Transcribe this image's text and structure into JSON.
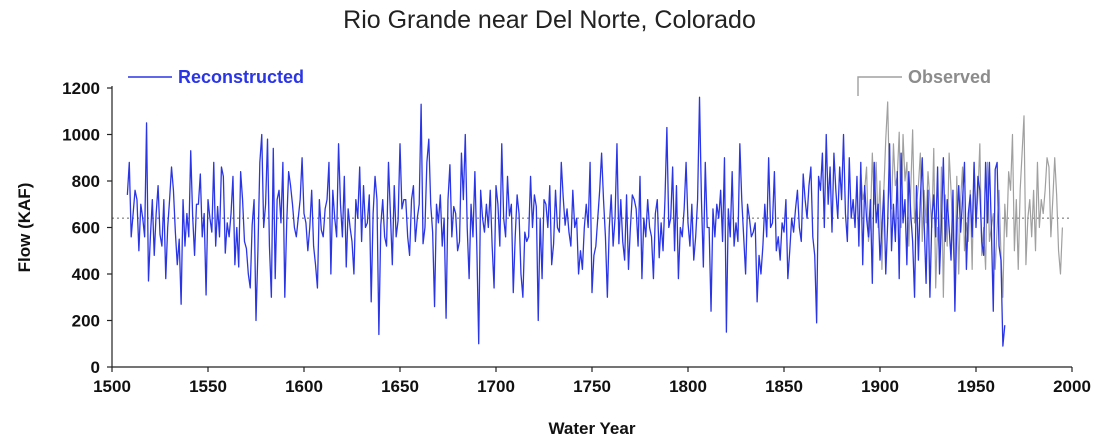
{
  "chart_data": {
    "type": "line",
    "title": "Rio Grande near Del Norte, Colorado",
    "xlabel": "Water Year",
    "ylabel": "Flow (KAF)",
    "xlim": [
      1500,
      2000
    ],
    "ylim": [
      0,
      1200
    ],
    "x_ticks": [
      "1500",
      "1550",
      "1600",
      "1650",
      "1700",
      "1750",
      "1800",
      "1850",
      "1900",
      "1950",
      "2000"
    ],
    "y_ticks": [
      "0",
      "200",
      "400",
      "600",
      "800",
      "1000",
      "1200"
    ],
    "mean_line": 640,
    "legend": {
      "reconstructed": "Reconstructed",
      "observed": "Observed"
    },
    "colors": {
      "reconstructed": "#2a35e6",
      "observed": "#a0a0a0",
      "mean": "#909090",
      "legend_observed_text": "#8c8c8c"
    },
    "series": [
      {
        "name": "Reconstructed",
        "x_start": 1508,
        "x_step": 1,
        "values": [
          740,
          880,
          560,
          660,
          760,
          720,
          500,
          700,
          640,
          560,
          1050,
          370,
          560,
          720,
          480,
          660,
          780,
          570,
          520,
          720,
          380,
          600,
          720,
          860,
          760,
          580,
          440,
          550,
          270,
          720,
          520,
          660,
          560,
          930,
          650,
          480,
          700,
          700,
          830,
          560,
          660,
          310,
          720,
          640,
          580,
          880,
          520,
          690,
          560,
          860,
          820,
          490,
          620,
          560,
          660,
          820,
          440,
          600,
          430,
          840,
          720,
          540,
          510,
          400,
          340,
          610,
          720,
          200,
          500,
          880,
          1000,
          600,
          700,
          980,
          520,
          300,
          940,
          380,
          720,
          760,
          620,
          880,
          300,
          620,
          840,
          780,
          700,
          600,
          560,
          640,
          720,
          900,
          660,
          620,
          500,
          600,
          760,
          520,
          440,
          340,
          720,
          590,
          560,
          680,
          720,
          880,
          400,
          760,
          640,
          560,
          960,
          700,
          560,
          820,
          430,
          680,
          600,
          540,
          400,
          720,
          640,
          860,
          540,
          780,
          600,
          620,
          740,
          280,
          660,
          820,
          720,
          140,
          610,
          720,
          560,
          520,
          880,
          660,
          440,
          780,
          560,
          630,
          960,
          680,
          720,
          720,
          560,
          480,
          720,
          780,
          540,
          640,
          700,
          1130,
          530,
          600,
          880,
          980,
          700,
          580,
          260,
          700,
          620,
          740,
          520,
          640,
          210,
          720,
          870,
          560,
          690,
          660,
          500,
          540,
          920,
          720,
          1000,
          600,
          380,
          700,
          560,
          840,
          520,
          100,
          760,
          640,
          580,
          700,
          600,
          760,
          520,
          340,
          780,
          700,
          520,
          960,
          640,
          560,
          820,
          650,
          700,
          320,
          560,
          740,
          660,
          400,
          300,
          580,
          540,
          560,
          820,
          600,
          740,
          690,
          200,
          640,
          380,
          720,
          700,
          600,
          780,
          440,
          530,
          760,
          600,
          580,
          880,
          730,
          610,
          680,
          580,
          520,
          760,
          600,
          640,
          400,
          500,
          420,
          600,
          700,
          600,
          880,
          320,
          480,
          520,
          640,
          760,
          920,
          720,
          560,
          300,
          600,
          740,
          520,
          640,
          960,
          530,
          720,
          540,
          460,
          740,
          420,
          600,
          740,
          720,
          680,
          520,
          820,
          380,
          640,
          560,
          720,
          600,
          560,
          380,
          660,
          720,
          470,
          620,
          500,
          720,
          1030,
          600,
          640,
          860,
          500,
          780,
          380,
          600,
          560,
          680,
          880,
          620,
          520,
          700,
          460,
          560,
          720,
          1160,
          720,
          430,
          880,
          600,
          600,
          240,
          680,
          560,
          700,
          640,
          760,
          540,
          900,
          150,
          680,
          560,
          840,
          520,
          620,
          540,
          960,
          720,
          560,
          400,
          700,
          640,
          560,
          580,
          620,
          280,
          480,
          400,
          520,
          700,
          560,
          900,
          600,
          620,
          840,
          500,
          560,
          460,
          620,
          580,
          720,
          380,
          500,
          640,
          580,
          680,
          760,
          600,
          540,
          830,
          720,
          640,
          780,
          860,
          560,
          480,
          190,
          820,
          760,
          920,
          600,
          1000,
          700,
          860,
          580,
          920,
          760,
          640,
          860,
          720,
          1000,
          660,
          540,
          900,
          640,
          720,
          600,
          820,
          520,
          880,
          440,
          780,
          640,
          560,
          720,
          360,
          880,
          620,
          700,
          460,
          600,
          760,
          400,
          620,
          960,
          500,
          700,
          540,
          840,
          380,
          920,
          620,
          720,
          440,
          840,
          660,
          540,
          300,
          780,
          460,
          720,
          900,
          620,
          360,
          760,
          300,
          640,
          740,
          560,
          860,
          400,
          620,
          900,
          540,
          720,
          600,
          460,
          760,
          240,
          620,
          780,
          580,
          720,
          880,
          420,
          660,
          740,
          560,
          880,
          600,
          820,
          760,
          540,
          480,
          880,
          620,
          880,
          600,
          240,
          850,
          880,
          520,
          460,
          90,
          180
        ],
        "color": "#2a35e6"
      },
      {
        "name": "Observed",
        "x_start": 1890,
        "x_step": 1,
        "values": [
          840,
          720,
          760,
          860,
          540,
          620,
          920,
          700,
          880,
          600,
          800,
          420,
          760,
          980,
          1140,
          760,
          680,
          960,
          780,
          820,
          1010,
          600,
          1000,
          800,
          880,
          520,
          760,
          1020,
          620,
          700,
          780,
          920,
          540,
          760,
          620,
          840,
          720,
          600,
          940,
          340,
          600,
          480,
          860,
          300,
          740,
          520,
          920,
          760,
          560,
          380,
          820,
          400,
          720,
          860,
          500,
          620,
          540,
          760,
          420,
          880,
          620,
          740,
          960,
          480,
          600,
          420,
          880,
          540,
          600,
          660,
          420,
          600,
          760,
          480,
          300,
          700,
          560,
          840,
          760,
          1000,
          500,
          720,
          420,
          760,
          920,
          1080,
          440,
          640,
          720,
          560,
          760,
          500,
          880,
          600,
          720,
          660,
          760,
          900,
          860,
          560,
          720,
          900,
          740,
          500,
          400,
          600
        ],
        "color": "#a0a0a0"
      }
    ]
  }
}
